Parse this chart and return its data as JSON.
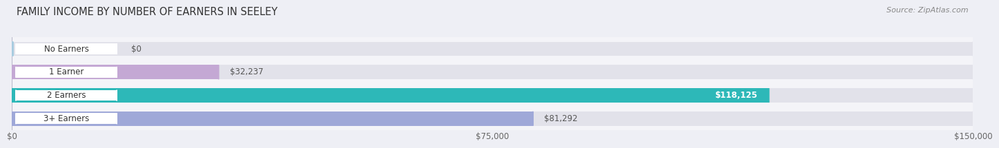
{
  "title": "FAMILY INCOME BY NUMBER OF EARNERS IN SEELEY",
  "source": "Source: ZipAtlas.com",
  "categories": [
    "No Earners",
    "1 Earner",
    "2 Earners",
    "3+ Earners"
  ],
  "values": [
    0,
    32237,
    118125,
    81292
  ],
  "bar_colors": [
    "#a8cce0",
    "#c4a8d4",
    "#2db8b8",
    "#9fa8d8"
  ],
  "label_colors": [
    "#444444",
    "#444444",
    "#ffffff",
    "#444444"
  ],
  "xlim": [
    0,
    150000
  ],
  "xticks": [
    0,
    75000,
    150000
  ],
  "xtick_labels": [
    "$0",
    "$75,000",
    "$150,000"
  ],
  "bar_height": 0.62,
  "background_color": "#eeeff5",
  "plot_bg_color": "#f4f4f8",
  "track_color": "#e2e2ea",
  "title_fontsize": 10.5,
  "label_fontsize": 8.5,
  "value_fontsize": 8.5,
  "source_fontsize": 8
}
